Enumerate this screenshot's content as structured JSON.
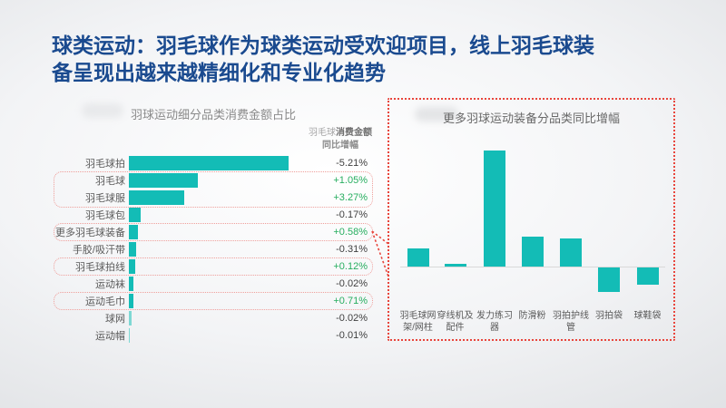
{
  "slide": {
    "title_line1": "球类运动：羽毛球作为球类运动受欢迎项目，线上羽毛球装",
    "title_line2": "备呈现出越来越精细化和专业化趋势"
  },
  "left_chart": {
    "title": "羽球运动细分品类消费金额占比",
    "value_header": {
      "prefix": "羽毛球",
      "bold": "消费金额",
      "line2": "同比增幅"
    },
    "rows": [
      {
        "label": "羽毛球拍",
        "yoy": "-5.21%",
        "positive": false,
        "share_est": 48.2,
        "highlighted": false,
        "light": false
      },
      {
        "label": "羽毛球",
        "yoy": "+1.05%",
        "positive": true,
        "share_est": 20.8,
        "highlighted": true,
        "light": false
      },
      {
        "label": "羽毛球服",
        "yoy": "+3.27%",
        "positive": true,
        "share_est": 16.7,
        "highlighted": true,
        "light": false
      },
      {
        "label": "羽毛球包",
        "yoy": "-0.17%",
        "positive": false,
        "share_est": 3.6,
        "highlighted": false,
        "light": false
      },
      {
        "label": "更多羽毛球装备",
        "yoy": "+0.58%",
        "positive": true,
        "share_est": 2.7,
        "highlighted": true,
        "light": false
      },
      {
        "label": "手胶/吸汗带",
        "yoy": "-0.31%",
        "positive": false,
        "share_est": 2.2,
        "highlighted": false,
        "light": false
      },
      {
        "label": "羽毛球拍线",
        "yoy": "+0.12%",
        "positive": true,
        "share_est": 1.9,
        "highlighted": true,
        "light": false
      },
      {
        "label": "运动袜",
        "yoy": "-0.02%",
        "positive": false,
        "share_est": 1.4,
        "highlighted": false,
        "light": false
      },
      {
        "label": "运动毛巾",
        "yoy": "+0.71%",
        "positive": true,
        "share_est": 1.4,
        "highlighted": true,
        "light": false
      },
      {
        "label": "球网",
        "yoy": "-0.02%",
        "positive": false,
        "share_est": 0.8,
        "highlighted": false,
        "light": true
      },
      {
        "label": "运动帽",
        "yoy": "-0.01%",
        "positive": false,
        "share_est": 0.3,
        "highlighted": false,
        "light": true
      }
    ]
  },
  "right_panel": {
    "title": "更多羽球运动装备分品类同比增幅",
    "categories": [
      {
        "line1": "羽毛球网",
        "line2": "架/网柱"
      },
      {
        "line1": "穿线机及",
        "line2": "配件"
      },
      {
        "line1": "发力练习",
        "line2": "器"
      },
      {
        "line1": "防滑粉",
        "line2": ""
      },
      {
        "line1": "羽拍护线",
        "line2": "管"
      },
      {
        "line1": "羽拍袋",
        "line2": ""
      },
      {
        "line1": "球鞋袋",
        "line2": ""
      }
    ],
    "values_rel": [
      16,
      2,
      100,
      26,
      24,
      -21,
      -15
    ]
  },
  "colors": {
    "title_navy": "#1a4a8f",
    "bar_teal": "#13bcb6",
    "bar_teal_light": "#7ed8d4",
    "value_positive_green": "#27ae60",
    "value_negative_dark": "#3f3f3f",
    "panel_border_red": "#e8453c",
    "highlight_box_red": "#ef9f9b"
  },
  "chart_data": [
    {
      "type": "bar",
      "orientation": "horizontal",
      "title": "羽球运动细分品类消费金额占比",
      "categories": [
        "羽毛球拍",
        "羽毛球",
        "羽毛球服",
        "羽毛球包",
        "更多羽毛球装备",
        "手胶/吸汗带",
        "羽毛球拍线",
        "运动袜",
        "运动毛巾",
        "球网",
        "运动帽"
      ],
      "series": [
        {
          "name": "消费金额占比（无数值标注，按条长估算，%）",
          "values": [
            48.2,
            20.8,
            16.7,
            3.6,
            2.7,
            2.2,
            1.9,
            1.4,
            1.4,
            0.8,
            0.3
          ]
        },
        {
          "name": "羽毛球消费金额同比增幅",
          "values": [
            "-5.21%",
            "+1.05%",
            "+3.27%",
            "-0.17%",
            "+0.58%",
            "-0.31%",
            "+0.12%",
            "-0.02%",
            "+0.71%",
            "-0.02%",
            "-0.01%"
          ]
        }
      ],
      "legend_position": "none",
      "grid": false,
      "annotation": "同比正增长的品类（羽毛球、羽毛球服、更多羽毛球装备、羽毛球拍线、运动毛巾）用红色虚线框标出"
    },
    {
      "type": "bar",
      "orientation": "vertical",
      "title": "更多羽球运动装备分品类同比增幅",
      "categories": [
        "羽毛球网架/网柱",
        "穿线机及配件",
        "发力练习器",
        "防滑粉",
        "羽拍护线管",
        "羽拍袋",
        "球鞋袋"
      ],
      "values": [
        16,
        2,
        100,
        26,
        24,
        -21,
        -15
      ],
      "ylabel": "",
      "xlabel": "",
      "grid": false,
      "note": "纵轴无刻度与数值标注；数值为按条高估算的相对值（最高条=100）"
    }
  ]
}
